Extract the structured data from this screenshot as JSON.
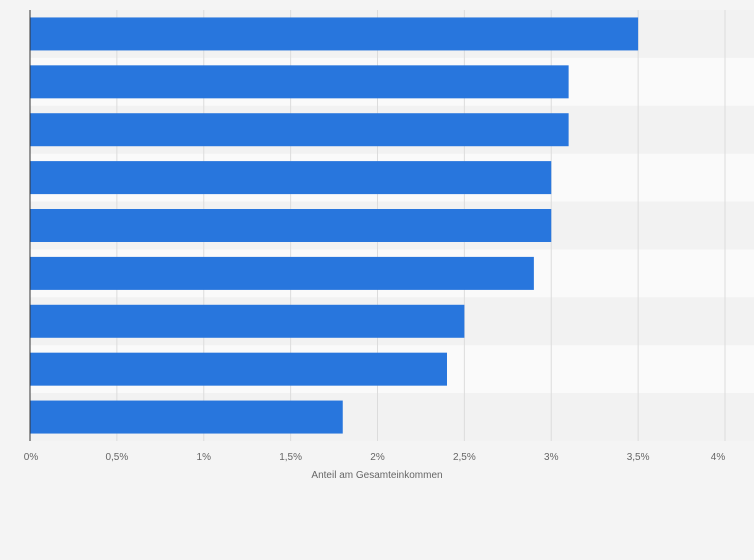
{
  "chart_data": {
    "type": "bar",
    "orientation": "horizontal",
    "categories": [
      "",
      "",
      "",
      "",
      "",
      "",
      "",
      "",
      ""
    ],
    "values": [
      3.5,
      3.1,
      3.1,
      3.0,
      3.0,
      2.9,
      2.5,
      2.4,
      1.8
    ],
    "xlabel": "Anteil am Gesamteinkommen",
    "xlim": [
      0,
      4
    ],
    "xticks": [
      0,
      0.5,
      1,
      1.5,
      2,
      2.5,
      3,
      3.5,
      4
    ],
    "xtick_labels": [
      "0%",
      "0,5%",
      "1%",
      "1,5%",
      "2%",
      "2,5%",
      "3%",
      "3,5%",
      "4%"
    ],
    "grid": true,
    "bar_color": "#2876dd",
    "band_colors": [
      "#f2f2f2",
      "#fafafa"
    ]
  }
}
